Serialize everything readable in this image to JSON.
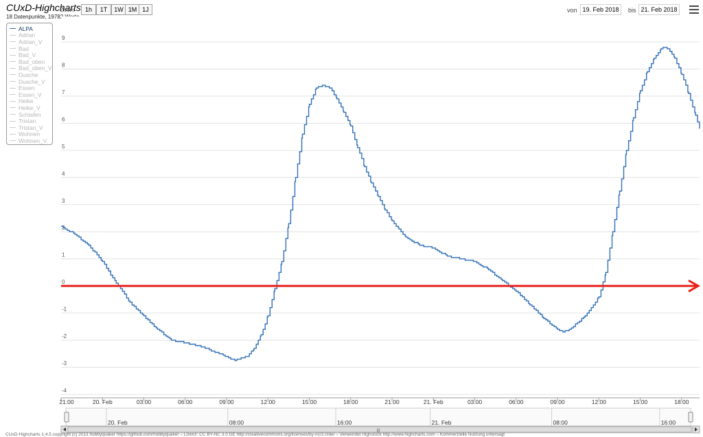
{
  "header": {
    "title": "CUxD-Highcharts 1.4.5",
    "subtitle": "18 Datenpunkte, 19782 Werte",
    "zoom_label": "Zoom",
    "zoom_buttons": [
      "1h",
      "1T",
      "1W",
      "1M",
      "1J"
    ],
    "from_label": "von",
    "from_value": "19. Feb 2018",
    "to_label": "bis",
    "to_value": "21. Feb 2018",
    "menu_icon": "hamburger-menu-icon"
  },
  "legend": {
    "placement": "top-left",
    "items": [
      {
        "name": "ALPA",
        "active": true
      },
      {
        "name": "Adrian",
        "active": false
      },
      {
        "name": "Adrian_V",
        "active": false
      },
      {
        "name": "Bad",
        "active": false
      },
      {
        "name": "Bad_V",
        "active": false
      },
      {
        "name": "Bad_oben",
        "active": false
      },
      {
        "name": "Bad_oben_V",
        "active": false
      },
      {
        "name": "Dusche",
        "active": false
      },
      {
        "name": "Dusche_V",
        "active": false
      },
      {
        "name": "Essen",
        "active": false
      },
      {
        "name": "Essen_V",
        "active": false
      },
      {
        "name": "Heike",
        "active": false
      },
      {
        "name": "Heike_V",
        "active": false
      },
      {
        "name": "Schlafen",
        "active": false
      },
      {
        "name": "Tristan",
        "active": false
      },
      {
        "name": "Tristan_V",
        "active": false
      },
      {
        "name": "Wohnen",
        "active": false
      },
      {
        "name": "Wohnen_V",
        "active": false
      }
    ]
  },
  "chart_data": {
    "type": "line",
    "step": true,
    "x_unit": "hours since 21:00 (19. Feb 2018)",
    "xlim": [
      0,
      46.3
    ],
    "ylim": [
      -4,
      9
    ],
    "yticks": [
      -4,
      -3,
      -2,
      -1,
      0,
      1,
      2,
      3,
      4,
      5,
      6,
      7,
      8,
      9
    ],
    "xticks": [
      {
        "x": 0,
        "label": "21:00"
      },
      {
        "x": 3,
        "label": "20. Feb"
      },
      {
        "x": 6,
        "label": "03:00"
      },
      {
        "x": 9,
        "label": "06:00"
      },
      {
        "x": 12,
        "label": "09:00"
      },
      {
        "x": 15,
        "label": "12:00"
      },
      {
        "x": 18,
        "label": "15:00"
      },
      {
        "x": 21,
        "label": "18:00"
      },
      {
        "x": 24,
        "label": "21:00"
      },
      {
        "x": 27,
        "label": "21. Feb"
      },
      {
        "x": 30,
        "label": "03:00"
      },
      {
        "x": 33,
        "label": "06:00"
      },
      {
        "x": 36,
        "label": "09:00"
      },
      {
        "x": 39,
        "label": "12:00"
      },
      {
        "x": 42,
        "label": "15:00"
      },
      {
        "x": 45,
        "label": "18:00"
      }
    ],
    "grid": true,
    "series": [
      {
        "name": "ALPA",
        "color": "#2f6eb5",
        "points": [
          [
            0,
            2.2
          ],
          [
            1,
            1.9
          ],
          [
            2,
            1.5
          ],
          [
            3,
            0.9
          ],
          [
            4,
            0.1
          ],
          [
            5,
            -0.6
          ],
          [
            6,
            -1.1
          ],
          [
            7,
            -1.6
          ],
          [
            8,
            -2.0
          ],
          [
            9,
            -2.1
          ],
          [
            10,
            -2.2
          ],
          [
            11,
            -2.4
          ],
          [
            12,
            -2.6
          ],
          [
            12.6,
            -2.75
          ],
          [
            13.5,
            -2.6
          ],
          [
            14,
            -2.3
          ],
          [
            14.5,
            -1.8
          ],
          [
            15,
            -1.1
          ],
          [
            15.5,
            -0.1
          ],
          [
            16,
            0.9
          ],
          [
            16.5,
            2.3
          ],
          [
            17,
            4.0
          ],
          [
            17.5,
            5.6
          ],
          [
            18,
            6.7
          ],
          [
            18.5,
            7.3
          ],
          [
            19,
            7.4
          ],
          [
            19.5,
            7.3
          ],
          [
            20,
            6.9
          ],
          [
            20.5,
            6.4
          ],
          [
            21,
            5.9
          ],
          [
            21.5,
            5.1
          ],
          [
            22,
            4.4
          ],
          [
            22.5,
            3.8
          ],
          [
            23,
            3.3
          ],
          [
            23.5,
            2.8
          ],
          [
            24,
            2.4
          ],
          [
            24.5,
            2.1
          ],
          [
            25,
            1.8
          ],
          [
            26,
            1.5
          ],
          [
            27,
            1.4
          ],
          [
            28,
            1.1
          ],
          [
            29,
            1.0
          ],
          [
            30,
            0.9
          ],
          [
            31,
            0.6
          ],
          [
            32,
            0.2
          ],
          [
            33,
            -0.2
          ],
          [
            34,
            -0.7
          ],
          [
            35,
            -1.2
          ],
          [
            36,
            -1.6
          ],
          [
            36.4,
            -1.7
          ],
          [
            37,
            -1.55
          ],
          [
            38,
            -1.1
          ],
          [
            39,
            -0.4
          ],
          [
            39.5,
            0.5
          ],
          [
            40,
            2.0
          ],
          [
            40.5,
            3.5
          ],
          [
            41,
            5.0
          ],
          [
            41.5,
            6.2
          ],
          [
            42,
            7.2
          ],
          [
            42.5,
            7.9
          ],
          [
            43,
            8.4
          ],
          [
            43.5,
            8.75
          ],
          [
            43.8,
            8.8
          ],
          [
            44,
            8.75
          ],
          [
            44.5,
            8.4
          ],
          [
            45,
            7.8
          ],
          [
            45.5,
            7.1
          ],
          [
            46,
            6.3
          ],
          [
            46.3,
            5.8
          ]
        ]
      }
    ],
    "annotations": [
      {
        "type": "arrow",
        "color": "#e8201a",
        "y": 0,
        "x_from": 0,
        "x_to": 46.3
      }
    ]
  },
  "navigator": {
    "ticks": [
      {
        "x": 3,
        "label": "20. Feb"
      },
      {
        "x": 12,
        "label": "08:00"
      },
      {
        "x": 20,
        "label": "16:00"
      },
      {
        "x": 27,
        "label": "21. Feb"
      },
      {
        "x": 36,
        "label": "08:00"
      },
      {
        "x": 44,
        "label": "16:00"
      }
    ],
    "scroll_left_icon": "arrow-left-icon",
    "scroll_right_icon": "arrow-right-icon",
    "scroll_grip_icon": "grip-icon",
    "scroll_grip_glyph": "|||"
  },
  "footer": {
    "text": "CUxD-Highcharts 1.4.5 copyright (c) 2013 hobbyquaker https://github.com/hobbyquaker – Lizenz: CC BY-NC 3.0 DE http://creativecommons.org/licenses/by-nc/3.0/de/ – Verwendet Highstock http://www.highcharts.com – Kommerzielle Nutzung untersagt"
  }
}
